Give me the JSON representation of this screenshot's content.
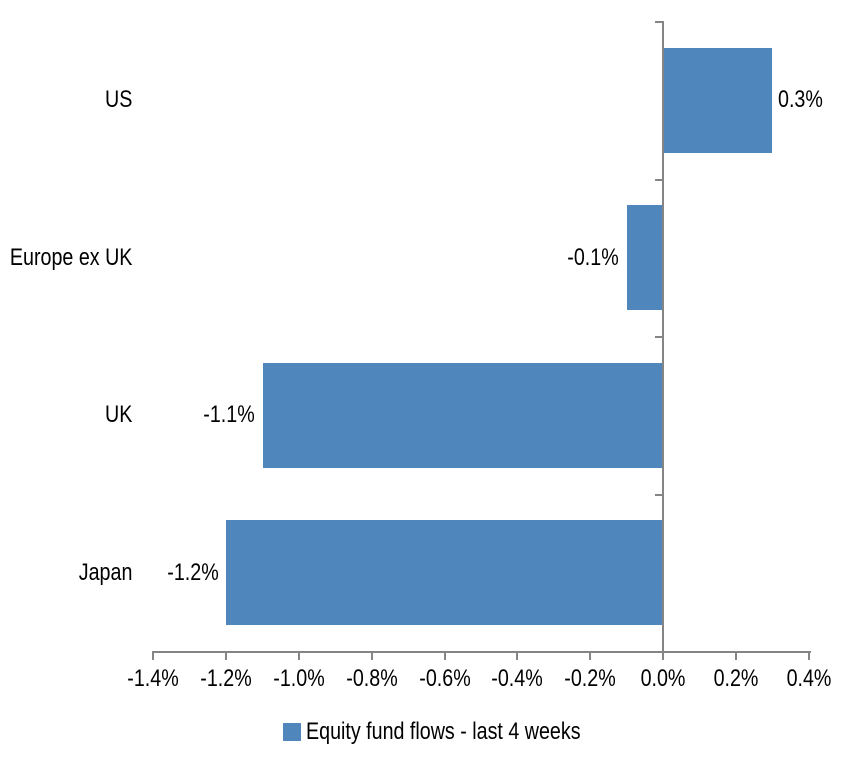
{
  "chart_data": {
    "type": "bar",
    "orientation": "horizontal",
    "title": "",
    "xlabel": "",
    "ylabel": "",
    "categories": [
      "US",
      "Europe ex UK",
      "UK",
      "Japan"
    ],
    "values": [
      0.3,
      -0.1,
      -1.1,
      -1.2
    ],
    "value_labels": [
      "0.3%",
      "-0.1%",
      "-1.1%",
      "-1.2%"
    ],
    "xlim": [
      -1.4,
      0.4
    ],
    "x_tick_values": [
      -1.4,
      -1.2,
      -1.0,
      -0.8,
      -0.6,
      -0.4,
      -0.2,
      0.0,
      0.2,
      0.4
    ],
    "x_tick_labels": [
      "-1.4%",
      "-1.2%",
      "-1.0%",
      "-0.8%",
      "-0.6%",
      "-0.4%",
      "-0.2%",
      "0.0%",
      "0.2%",
      "0.4%"
    ],
    "grid": "off",
    "legend_position": "bottom-center",
    "legend": "Equity fund flows - last 4 weeks",
    "colors": {
      "bar": "#4F86BC",
      "axis": "#858585",
      "text": "#000000",
      "background": "#ffffff"
    }
  }
}
